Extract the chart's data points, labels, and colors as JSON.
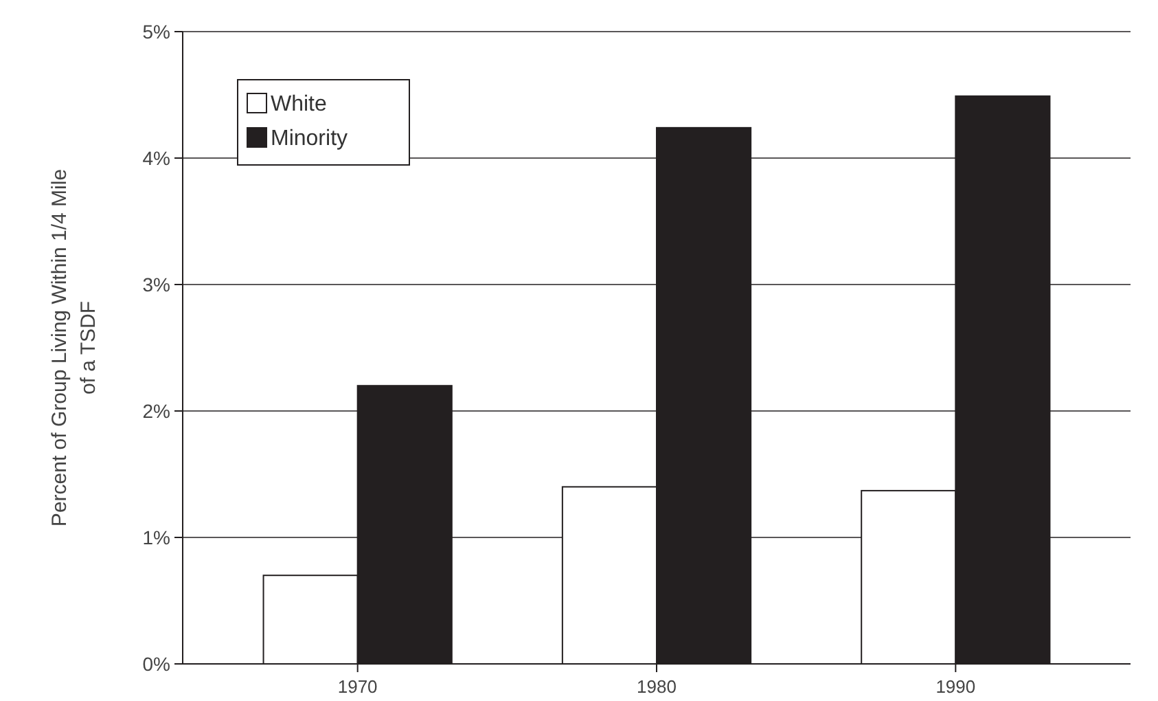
{
  "chart_data": {
    "type": "bar",
    "ylabel": "Percent of Group Living Within 1/4 Mile\nof a TSDF",
    "categories": [
      "1970",
      "1980",
      "1990"
    ],
    "series": [
      {
        "name": "White",
        "color": "#ffffff",
        "values": [
          0.7,
          1.4,
          1.37
        ]
      },
      {
        "name": "Minority",
        "color": "#231f20",
        "values": [
          2.2,
          4.24,
          4.49
        ]
      }
    ],
    "ylim": [
      0,
      5
    ],
    "yticks": [
      {
        "value": 0,
        "label": "0%"
      },
      {
        "value": 1,
        "label": "1%"
      },
      {
        "value": 2,
        "label": "2%"
      },
      {
        "value": 3,
        "label": "3%"
      },
      {
        "value": 4,
        "label": "4%"
      },
      {
        "value": 5,
        "label": "5%"
      }
    ],
    "grid": "y",
    "legend": "top left"
  }
}
